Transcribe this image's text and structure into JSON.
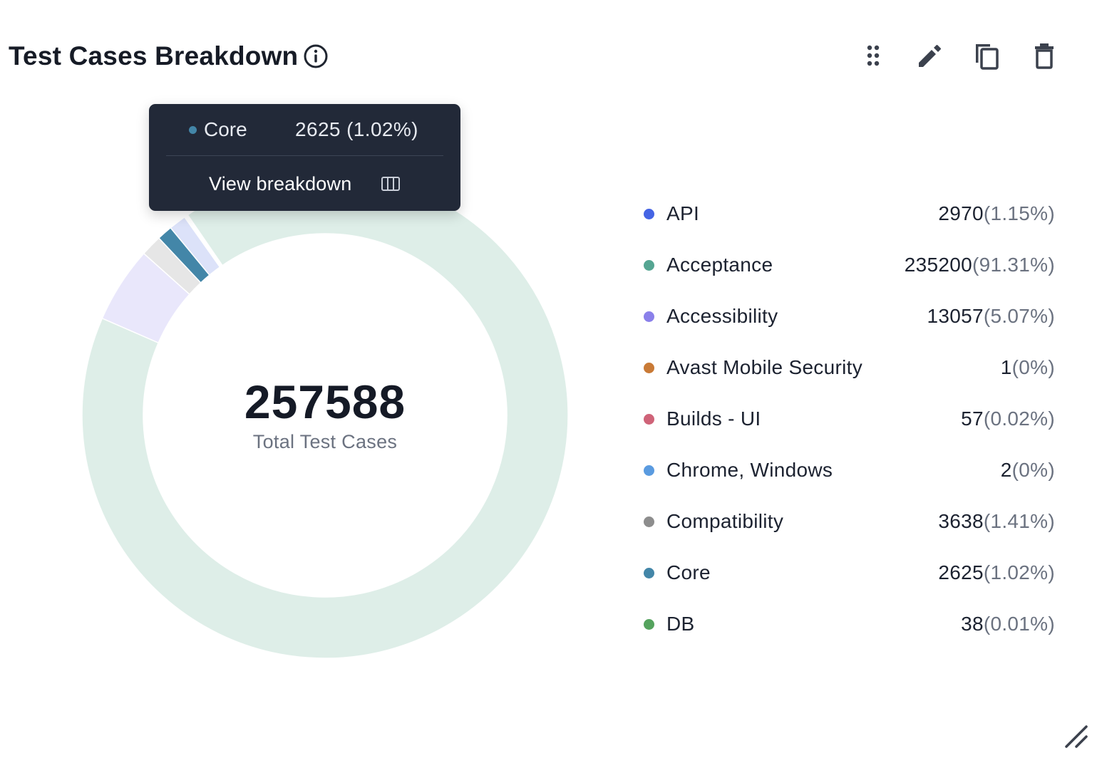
{
  "widget": {
    "title": "Test Cases Breakdown",
    "center_value": "257588",
    "center_label": "Total Test Cases"
  },
  "icons": {
    "info": "info-circle-icon",
    "drag": "drag-dots-icon",
    "edit": "pencil-icon",
    "copy": "copy-icon",
    "delete": "trash-icon",
    "view_breakdown": "columns-icon",
    "resize": "resize-corner-icon"
  },
  "tooltip": {
    "name": "Core",
    "value": "2625 (1.02%)",
    "link_label": "View breakdown",
    "color": "#4386a8"
  },
  "legend": [
    {
      "name": "API",
      "count": "2970",
      "pct": "(1.15%)",
      "color": "#4564e4"
    },
    {
      "name": "Acceptance",
      "count": "235200",
      "pct": "(91.31%)",
      "color": "#55a592"
    },
    {
      "name": "Accessibility",
      "count": "13057",
      "pct": "(5.07%)",
      "color": "#8a80ea"
    },
    {
      "name": "Avast Mobile Security",
      "count": "1",
      "pct": "(0%)",
      "color": "#c97a36"
    },
    {
      "name": "Builds - UI",
      "count": "57",
      "pct": "(0.02%)",
      "color": "#cf6378"
    },
    {
      "name": "Chrome, Windows",
      "count": "2",
      "pct": "(0%)",
      "color": "#5a9be0"
    },
    {
      "name": "Compatibility",
      "count": "3638",
      "pct": "(1.41%)",
      "color": "#8d8d8d"
    },
    {
      "name": "Core",
      "count": "2625",
      "pct": "(1.02%)",
      "color": "#4386a8"
    },
    {
      "name": "DB",
      "count": "38",
      "pct": "(0.01%)",
      "color": "#55a35e"
    }
  ],
  "chart_data": {
    "type": "pie",
    "donut": true,
    "title": "Test Cases Breakdown",
    "total": 257588,
    "highlighted": "Core",
    "legend_position": "right",
    "slices": [
      {
        "label": "Acceptance",
        "value": 235200,
        "percent": 91.31,
        "color": "#55a592",
        "faded_color": "#deeee8"
      },
      {
        "label": "Accessibility",
        "value": 13057,
        "percent": 5.07,
        "color": "#8a80ea",
        "faded_color": "#e9e7fb"
      },
      {
        "label": "Compatibility",
        "value": 3638,
        "percent": 1.41,
        "color": "#8d8d8d",
        "faded_color": "#e6e6e6"
      },
      {
        "label": "Core",
        "value": 2625,
        "percent": 1.02,
        "color": "#4386a8",
        "faded_color": "#4386a8"
      },
      {
        "label": "API",
        "value": 2970,
        "percent": 1.15,
        "color": "#4564e4",
        "faded_color": "#dce2f9"
      },
      {
        "label": "Builds - UI",
        "value": 57,
        "percent": 0.02,
        "color": "#cf6378",
        "faded_color": "#f5dde2"
      },
      {
        "label": "DB",
        "value": 38,
        "percent": 0.01,
        "color": "#55a35e",
        "faded_color": "#dcecdd"
      },
      {
        "label": "Chrome, Windows",
        "value": 2,
        "percent": 0,
        "color": "#5a9be0",
        "faded_color": "#dde9f8"
      },
      {
        "label": "Avast Mobile Security",
        "value": 1,
        "percent": 0,
        "color": "#c97a36",
        "faded_color": "#f4e4d6"
      }
    ]
  }
}
